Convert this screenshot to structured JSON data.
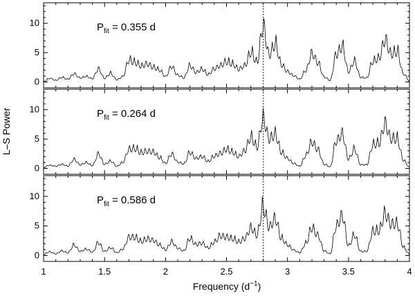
{
  "chart_data": {
    "type": "line",
    "ylabel": "L–S Power",
    "xlabel": "Frequency (d",
    "xlabel_sup": "−1",
    "xlabel_close": ")",
    "xlim": [
      1,
      4
    ],
    "ylim": [
      -1,
      13.5
    ],
    "xticks": [
      1,
      1.5,
      2,
      2.5,
      3,
      3.5,
      4
    ],
    "xtick_labels": [
      "1",
      "1.5",
      "2",
      "2.5",
      "3",
      "3.5",
      "4"
    ],
    "yticks": [
      0,
      5,
      10
    ],
    "ytick_labels": [
      "0",
      "5",
      "10"
    ],
    "reference_line_x": 2.8,
    "panels": [
      {
        "annotation_main": "P",
        "annotation_sub": "fit",
        "annotation_value": " = 0.355 d",
        "x": [
          1.0,
          1.05,
          1.1,
          1.15,
          1.2,
          1.25,
          1.3,
          1.35,
          1.4,
          1.45,
          1.5,
          1.55,
          1.6,
          1.65,
          1.7,
          1.75,
          1.8,
          1.85,
          1.9,
          1.95,
          2.0,
          2.05,
          2.1,
          2.15,
          2.2,
          2.25,
          2.3,
          2.35,
          2.4,
          2.45,
          2.5,
          2.55,
          2.6,
          2.65,
          2.7,
          2.75,
          2.8,
          2.85,
          2.9,
          2.95,
          3.0,
          3.05,
          3.1,
          3.15,
          3.2,
          3.25,
          3.3,
          3.35,
          3.4,
          3.45,
          3.5,
          3.55,
          3.6,
          3.65,
          3.7,
          3.75,
          3.8,
          3.85,
          3.9,
          3.95,
          4.0
        ],
        "y": [
          0.2,
          0.8,
          0.4,
          1.0,
          0.6,
          1.8,
          0.9,
          1.2,
          0.7,
          2.9,
          0.8,
          1.9,
          0.5,
          1.2,
          4.8,
          4.2,
          3.5,
          4.0,
          3.2,
          2.6,
          1.2,
          3.4,
          1.5,
          0.9,
          3.6,
          2.1,
          2.8,
          1.6,
          2.9,
          3.6,
          4.4,
          3.9,
          2.8,
          3.6,
          6.5,
          4.3,
          12.2,
          6.0,
          8.3,
          3.8,
          2.3,
          1.4,
          0.6,
          2.5,
          6.3,
          4.2,
          1.1,
          0.4,
          6.1,
          7.8,
          2.2,
          4.6,
          1.0,
          0.9,
          4.5,
          5.2,
          9.3,
          6.1,
          6.6,
          1.8,
          0.3
        ]
      },
      {
        "annotation_main": "P",
        "annotation_sub": "fit",
        "annotation_value": " = 0.264 d",
        "x": [
          1.0,
          1.05,
          1.1,
          1.15,
          1.2,
          1.25,
          1.3,
          1.35,
          1.4,
          1.45,
          1.5,
          1.55,
          1.6,
          1.65,
          1.7,
          1.75,
          1.8,
          1.85,
          1.9,
          1.95,
          2.0,
          2.05,
          2.1,
          2.15,
          2.2,
          2.25,
          2.3,
          2.35,
          2.4,
          2.45,
          2.5,
          2.55,
          2.6,
          2.65,
          2.7,
          2.75,
          2.8,
          2.85,
          2.9,
          2.95,
          3.0,
          3.05,
          3.1,
          3.15,
          3.2,
          3.25,
          3.3,
          3.35,
          3.4,
          3.45,
          3.5,
          3.55,
          3.6,
          3.65,
          3.7,
          3.75,
          3.8,
          3.85,
          3.9,
          3.95,
          4.0
        ],
        "y": [
          0.3,
          0.7,
          0.5,
          0.9,
          0.5,
          2.0,
          0.8,
          1.3,
          0.6,
          3.2,
          0.9,
          1.6,
          0.5,
          1.3,
          4.2,
          4.3,
          3.4,
          3.8,
          3.6,
          2.4,
          1.1,
          3.2,
          1.4,
          1.0,
          3.5,
          2.2,
          2.6,
          1.5,
          2.7,
          3.3,
          4.2,
          3.5,
          2.6,
          3.9,
          6.9,
          4.6,
          11.0,
          6.5,
          7.5,
          3.5,
          2.2,
          1.1,
          0.5,
          2.8,
          5.8,
          4.1,
          0.9,
          0.4,
          6.0,
          7.6,
          2.0,
          4.2,
          0.8,
          0.8,
          5.1,
          5.5,
          9.8,
          6.5,
          6.4,
          1.8,
          0.3
        ]
      },
      {
        "annotation_main": "P",
        "annotation_sub": "fit",
        "annotation_value": " = 0.586 d",
        "x": [
          1.0,
          1.05,
          1.1,
          1.15,
          1.2,
          1.25,
          1.3,
          1.35,
          1.4,
          1.45,
          1.5,
          1.55,
          1.6,
          1.65,
          1.7,
          1.75,
          1.8,
          1.85,
          1.9,
          1.95,
          2.0,
          2.05,
          2.1,
          2.15,
          2.2,
          2.25,
          2.3,
          2.35,
          2.4,
          2.45,
          2.5,
          2.55,
          2.6,
          2.65,
          2.7,
          2.75,
          2.8,
          2.85,
          2.9,
          2.95,
          3.0,
          3.05,
          3.1,
          3.15,
          3.2,
          3.25,
          3.3,
          3.35,
          3.4,
          3.45,
          3.5,
          3.55,
          3.6,
          3.65,
          3.7,
          3.75,
          3.8,
          3.85,
          3.9,
          3.95,
          4.0
        ],
        "y": [
          0.3,
          0.8,
          0.4,
          1.0,
          0.6,
          2.3,
          0.9,
          1.4,
          0.7,
          2.8,
          0.9,
          1.7,
          0.6,
          1.4,
          4.0,
          3.9,
          3.0,
          3.6,
          3.3,
          2.3,
          1.2,
          3.0,
          1.6,
          1.0,
          3.7,
          2.4,
          2.7,
          1.6,
          2.9,
          4.3,
          4.0,
          3.6,
          2.9,
          3.7,
          6.0,
          4.4,
          10.5,
          6.2,
          8.0,
          3.7,
          2.3,
          1.2,
          0.6,
          2.6,
          6.0,
          4.4,
          1.0,
          0.4,
          6.4,
          8.7,
          2.1,
          4.4,
          0.9,
          0.9,
          5.2,
          5.3,
          9.1,
          6.8,
          6.9,
          1.8,
          0.3
        ]
      }
    ]
  }
}
